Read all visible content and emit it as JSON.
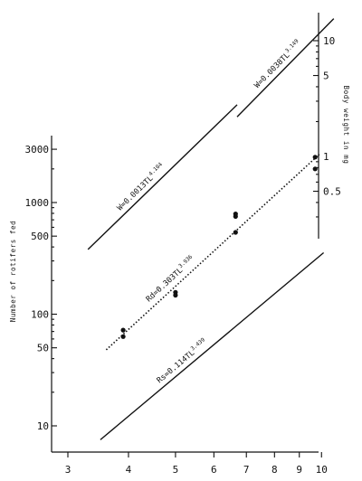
{
  "chart_data": {
    "type": "line",
    "title": "",
    "xlabel": "",
    "ylabel": "Number of rotifers fed",
    "y2label": "Body weight in mg",
    "x_scale": "log",
    "y_scale": "log",
    "x_ticks": [
      3,
      4,
      5,
      6,
      7,
      8,
      9,
      10
    ],
    "x_tick_labels": [
      "3",
      "4",
      "5",
      "6",
      "7",
      "8",
      "9",
      "10"
    ],
    "y_ticks": [
      10,
      50,
      100,
      500,
      1000,
      3000
    ],
    "y_tick_labels": [
      "10",
      "50",
      "100",
      "500",
      "1000",
      "3000"
    ],
    "y2_ticks": [
      0.5,
      1,
      5,
      10
    ],
    "y2_tick_labels": [
      "0.5",
      "1",
      "5",
      "10"
    ],
    "series": [
      {
        "name": "Rd",
        "label": "Rd=0.303TL",
        "exponent": "3.936",
        "style": "dotted",
        "axis": "left",
        "x": [
          3.6,
          9.9
        ],
        "y": [
          48,
          2700
        ]
      },
      {
        "name": "Rs",
        "label": "Rs=0.114TL",
        "exponent": "3.439",
        "style": "solid",
        "axis": "left",
        "x": [
          3.5,
          10.1
        ],
        "y": [
          7.5,
          355
        ]
      },
      {
        "name": "W1",
        "label": "W=0.0013TL",
        "exponent": "4.104",
        "style": "solid",
        "axis": "left",
        "x": [
          3.3,
          6.7
        ],
        "y": [
          380,
          7500
        ]
      },
      {
        "name": "W2",
        "label": "W=0.0038TL",
        "exponent": "3.149",
        "style": "solid",
        "axis": "right",
        "x": [
          6.7,
          10.6
        ],
        "y": [
          2.2,
          15.5
        ]
      }
    ],
    "points": [
      {
        "x": 3.9,
        "y": 72
      },
      {
        "x": 3.9,
        "y": 63
      },
      {
        "x": 5.0,
        "y": 157
      },
      {
        "x": 5.0,
        "y": 148
      },
      {
        "x": 6.65,
        "y": 790
      },
      {
        "x": 6.65,
        "y": 750
      },
      {
        "x": 6.65,
        "y": 540
      },
      {
        "x": 9.7,
        "y": 2550
      },
      {
        "x": 9.7,
        "y": 2000
      }
    ]
  }
}
